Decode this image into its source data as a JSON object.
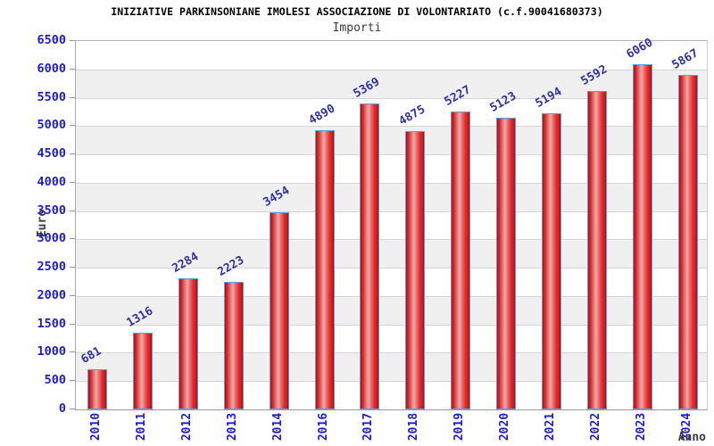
{
  "header": {
    "title": "INIZIATIVE PARKINSONIANE IMOLESI ASSOCIAZIONE DI VOLONTARIATO (c.f.90041680373)",
    "subtitle": "Importi"
  },
  "chart_data": {
    "type": "bar",
    "title": "INIZIATIVE PARKINSONIANE IMOLESI ASSOCIAZIONE DI VOLONTARIATO (c.f.90041680373)",
    "subtitle": "Importi",
    "xlabel": "Anno",
    "ylabel": "Euro",
    "categories": [
      "2010",
      "2011",
      "2012",
      "2013",
      "2014",
      "2016",
      "2017",
      "2018",
      "2019",
      "2020",
      "2021",
      "2022",
      "2023",
      "2024"
    ],
    "values": [
      681,
      1316,
      2284,
      2223,
      3454,
      4890,
      5369,
      4875,
      5227,
      5123,
      5194,
      5592,
      6060,
      5867
    ],
    "ylim": [
      0,
      6500
    ],
    "ytick_step": 500,
    "yticks": [
      0,
      500,
      1000,
      1500,
      2000,
      2500,
      3000,
      3500,
      4000,
      4500,
      5000,
      5500,
      6000,
      6500
    ],
    "grid": true,
    "legend_position": "none",
    "colors": {
      "bar_fill_dark": "#b80b0b",
      "bar_fill_light": "#efa9a9",
      "bar_border": "#55a0e8",
      "axis_tick_label": "#1c1cce",
      "value_label": "#31319e",
      "band_white": "#ffffff",
      "band_gray": "#f0f0f0",
      "gridline": "#d4d4d4",
      "axis_line": "#9a9a9a",
      "axis_title": "#3c3c3c",
      "title": "#000000",
      "subtitle": "#3c3c3c"
    }
  }
}
